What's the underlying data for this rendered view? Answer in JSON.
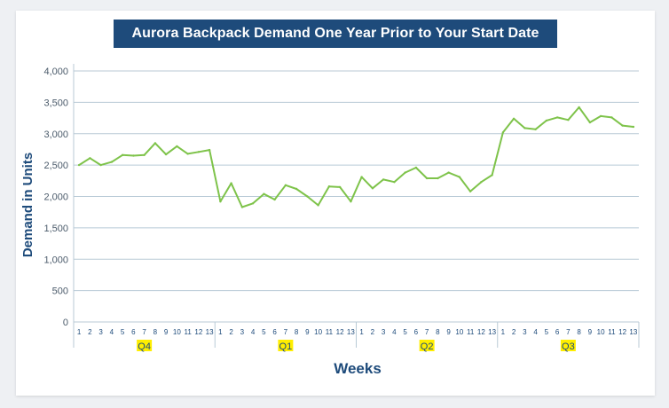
{
  "chart_data": {
    "type": "line",
    "title": "Aurora Backpack Demand One Year Prior to Your Start Date",
    "xlabel": "Weeks",
    "ylabel": "Demand in Units",
    "ylim": [
      0,
      4000
    ],
    "yticks": [
      "0",
      "500",
      "1,000",
      "1,500",
      "2,000",
      "2,500",
      "3,000",
      "3,500",
      "4,000"
    ],
    "grid": true,
    "quarters": [
      {
        "label": "Q4",
        "weeks": [
          "1",
          "2",
          "3",
          "4",
          "5",
          "6",
          "7",
          "8",
          "9",
          "10",
          "11",
          "12",
          "13"
        ],
        "highlight": "#ffee00"
      },
      {
        "label": "Q1",
        "weeks": [
          "1",
          "2",
          "3",
          "4",
          "5",
          "6",
          "7",
          "8",
          "9",
          "10",
          "11",
          "12",
          "13"
        ],
        "highlight": "#ffee00"
      },
      {
        "label": "Q2",
        "weeks": [
          "1",
          "2",
          "3",
          "4",
          "5",
          "6",
          "7",
          "8",
          "9",
          "10",
          "11",
          "12",
          "13"
        ],
        "highlight": "#ffee00"
      },
      {
        "label": "Q3",
        "weeks": [
          "1",
          "2",
          "3",
          "4",
          "5",
          "6",
          "7",
          "8",
          "9",
          "10",
          "11",
          "12",
          "13"
        ],
        "highlight": "#ffee00"
      }
    ],
    "series": [
      {
        "color": "#7ec34a",
        "values": [
          2500,
          2610,
          2500,
          2550,
          2660,
          2650,
          2660,
          2850,
          2670,
          2800,
          2680,
          2710,
          2740,
          1920,
          2210,
          1830,
          1890,
          2040,
          1950,
          2180,
          2120,
          2000,
          1860,
          2160,
          2150,
          1920,
          2310,
          2130,
          2270,
          2230,
          2380,
          2460,
          2290,
          2290,
          2380,
          2310,
          2080,
          2230,
          2340,
          3020,
          3240,
          3090,
          3070,
          3210,
          3260,
          3220,
          3420,
          3180,
          3280,
          3260,
          3130,
          3110
        ]
      }
    ]
  }
}
